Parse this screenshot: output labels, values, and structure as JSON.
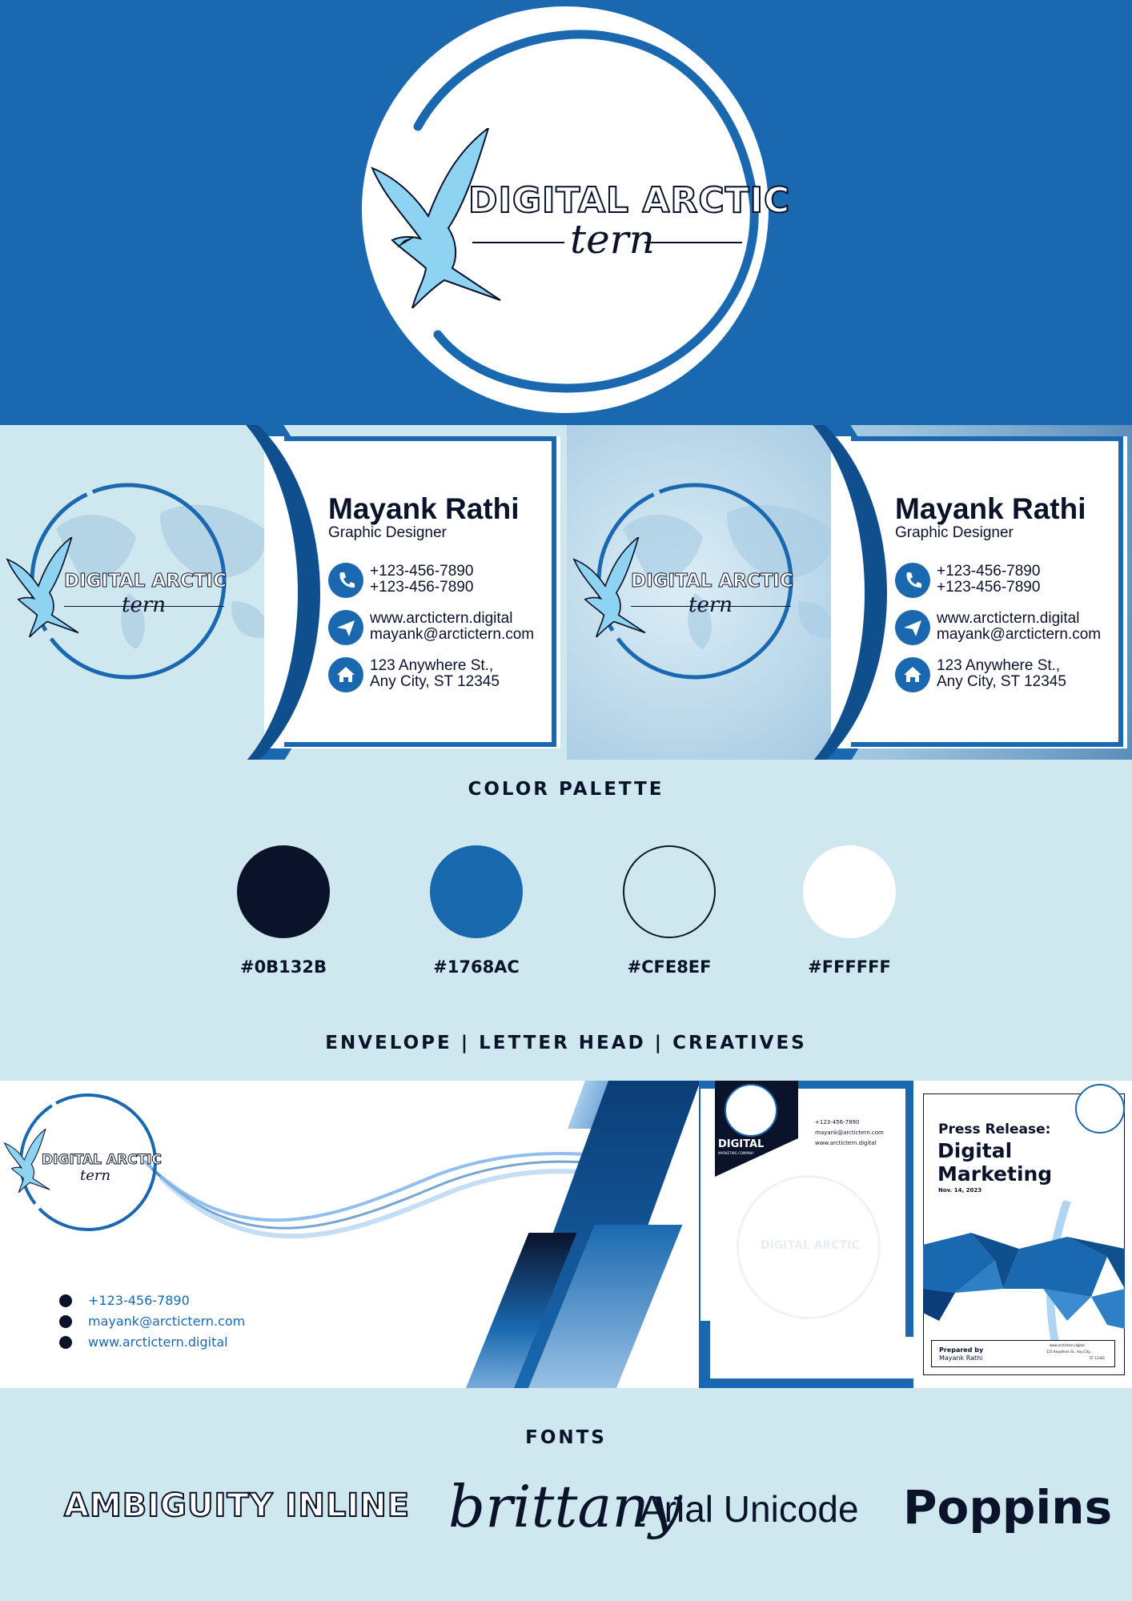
{
  "brand": {
    "line1": "DIGITAL ARCTIC",
    "line2": "tern"
  },
  "cards": [
    {
      "name": "Mayank Rathi",
      "role": "Graphic Designer",
      "phone1": "+123-456-7890",
      "phone2": "+123-456-7890",
      "web": "www.arctictern.digital",
      "email": "mayank@arctictern.com",
      "addr1": "123 Anywhere St.,",
      "addr2": "Any City, ST 12345"
    },
    {
      "name": "Mayank Rathi",
      "role": "Graphic Designer",
      "phone1": "+123-456-7890",
      "phone2": "+123-456-7890",
      "web": "www.arctictern.digital",
      "email": "mayank@arctictern.com",
      "addr1": "123 Anywhere St.,",
      "addr2": "Any City, ST 12345"
    }
  ],
  "palette": {
    "title": "COLOR PALETTE",
    "colors": [
      {
        "hex": "#0B132B",
        "label": "#0B132B"
      },
      {
        "hex": "#1768AC",
        "label": "#1768AC"
      },
      {
        "hex": "#CFE8EF",
        "label": "#CFE8EF"
      },
      {
        "hex": "#FFFFFF",
        "label": "#FFFFFF"
      }
    ]
  },
  "stationery": {
    "title": "ENVELOPE | LETTER HEAD | CREATIVES",
    "envelope": {
      "phone": "+123-456-7890",
      "email": "mayank@arctictern.com",
      "web": "www.arctictern.digital"
    },
    "letterhead": {
      "company": "DIGITAL",
      "company_sub": "MARKETING COMPANY",
      "phone": "+123-456-7890",
      "email": "mayank@arctictern.com",
      "web": "www.arctictern.digital"
    },
    "poster": {
      "kicker": "Press Release:",
      "title1": "Digital",
      "title2": "Marketing",
      "date": "Nov. 14, 2023",
      "prepared": "Prepared by",
      "author": "Mayank Rathi",
      "web": "www.arctictern.digital",
      "addr": "123 Anywhere St., Any City,",
      "zip": "ST 12345"
    }
  },
  "fonts": {
    "title": "FONTS",
    "items": [
      "AMBIGUITY INLINE",
      "brittany",
      "Arial Unicode",
      "Poppins"
    ]
  },
  "icons": [
    "bird-icon",
    "phone-icon",
    "send-icon",
    "home-icon",
    "mail-icon",
    "globe-icon"
  ]
}
